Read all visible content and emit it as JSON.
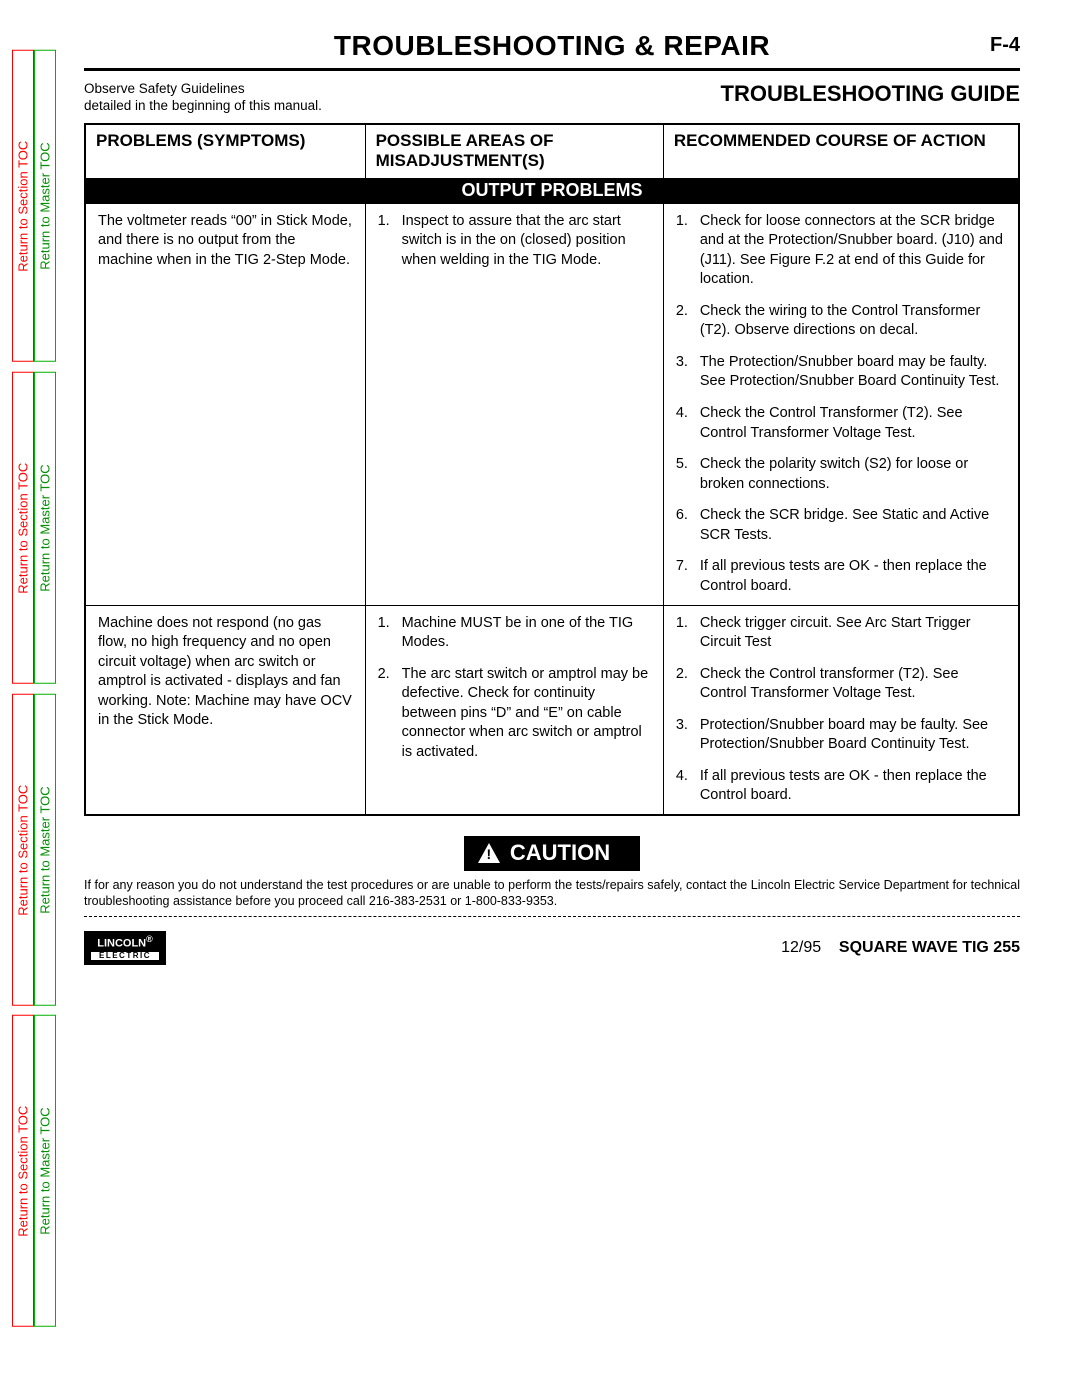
{
  "sidebar": {
    "section_toc": "Return to Section TOC",
    "master_toc": "Return to Master TOC"
  },
  "colors": {
    "section_toc": "#ff0000",
    "master_toc": "#00b000",
    "band_bg": "#000000",
    "band_fg": "#ffffff"
  },
  "header": {
    "title": "TROUBLESHOOTING & REPAIR",
    "page_num": "F-4"
  },
  "safety": {
    "line1": "Observe Safety Guidelines",
    "line2": "detailed in the beginning of this manual."
  },
  "guide_title": "TROUBLESHOOTING GUIDE",
  "table": {
    "columns": {
      "problems": "PROBLEMS (SYMPTOMS)",
      "misadjust": "POSSIBLE AREAS OF MISADJUSTMENT(S)",
      "action": "RECOMMENDED COURSE OF ACTION"
    },
    "band": "OUTPUT PROBLEMS",
    "rows": [
      {
        "problem": "The voltmeter reads “00” in Stick Mode, and there is no output from the machine when in the TIG 2-Step Mode.",
        "misadjust": [
          "Inspect to assure that the arc start switch is in the on (closed) position when welding in the TIG Mode."
        ],
        "action": [
          "Check for loose connectors at the SCR bridge and at the Protection/Snubber board. (J10) and (J11). See Figure F.2 at end of this Guide for location.",
          "Check the wiring to the Control Transformer (T2).  Observe directions on decal.",
          "The Protection/Snubber board may be faulty.  See Protection/Snubber Board Continuity Test.",
          "Check the Control Transformer (T2). See Control Transformer Voltage Test.",
          "Check the polarity switch (S2) for loose or broken connections.",
          "Check the SCR bridge.  See Static and Active SCR Tests.",
          "If all previous tests are OK - then replace the Control board."
        ]
      },
      {
        "problem": "Machine does not respond (no gas flow, no high frequency and no open circuit voltage) when arc switch or amptrol is activated - displays and fan working.  Note: Machine may have OCV in the Stick Mode.",
        "misadjust": [
          "Machine MUST be in one of the TIG Modes.",
          "The arc start switch or amptrol may be defective.  Check for continuity between pins “D” and “E” on cable connector when arc switch or amptrol is activated."
        ],
        "action": [
          "Check trigger circuit.  See Arc Start Trigger Circuit Test",
          "Check the Control transformer (T2).  See Control Transformer Voltage Test.",
          "Protection/Snubber board may be faulty.  See Protection/Snubber Board Continuity Test.",
          "If all previous tests are OK - then replace the Control board."
        ]
      }
    ]
  },
  "caution": {
    "label": "CAUTION",
    "text": "If for any reason you do not understand the test procedures or are unable to perform the tests/repairs safely, contact the Lincoln Electric Service Department for technical troubleshooting assistance before you proceed call 216-383-2531 or 1-800-833-9353."
  },
  "footer": {
    "logo_top": "LINCOLN",
    "logo_reg": "®",
    "logo_bottom": "ELECTRIC",
    "date": "12/95",
    "model": "SQUARE WAVE TIG 255"
  }
}
